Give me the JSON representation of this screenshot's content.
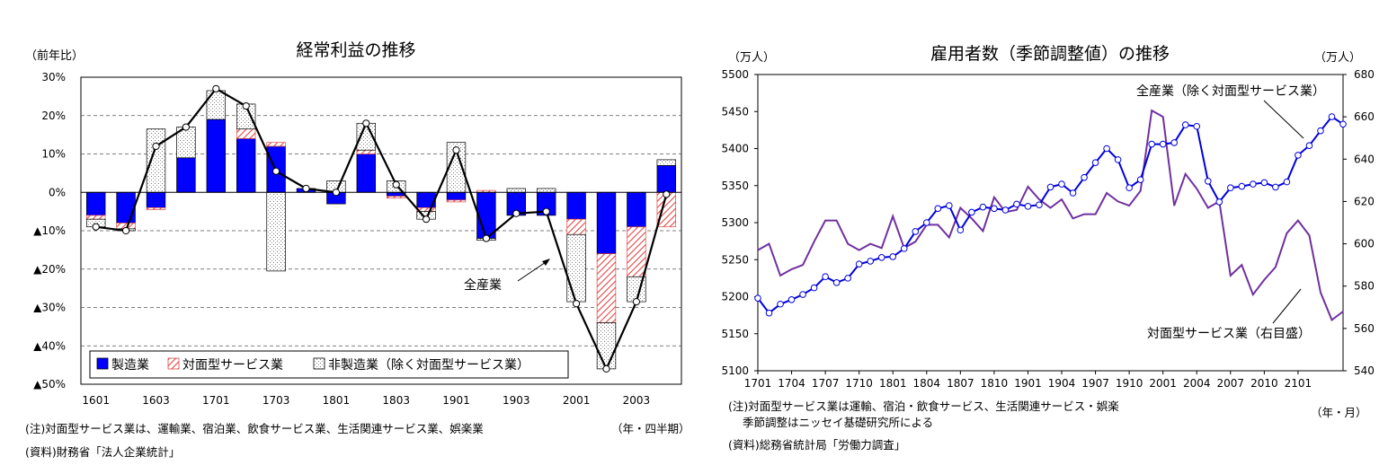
{
  "chart_data": [
    {
      "type": "bar",
      "title": "経常利益の推移",
      "ylabel_unit": "（前年比）",
      "xlabel_unit": "（年・四半期）",
      "ylim": [
        -50,
        30
      ],
      "y_ticks": [
        {
          "value": 30,
          "label": "30%"
        },
        {
          "value": 20,
          "label": "20%"
        },
        {
          "value": 10,
          "label": "10%"
        },
        {
          "value": 0,
          "label": "0%"
        },
        {
          "value": -10,
          "label": "▲10%"
        },
        {
          "value": -20,
          "label": "▲20%"
        },
        {
          "value": -30,
          "label": "▲30%"
        },
        {
          "value": -40,
          "label": "▲40%"
        },
        {
          "value": -50,
          "label": "▲50%"
        }
      ],
      "x_tick_labels": [
        "1601",
        "1603",
        "1701",
        "1703",
        "1801",
        "1803",
        "1901",
        "1903",
        "2001",
        "2003"
      ],
      "categories": [
        "1601",
        "1602",
        "1603",
        "1604",
        "1701",
        "1702",
        "1703",
        "1704",
        "1801",
        "1802",
        "1803",
        "1804",
        "1901",
        "1902",
        "1903",
        "1904",
        "2001",
        "2002",
        "2003",
        "2004"
      ],
      "series": [
        {
          "name": "製造業",
          "color": "#0000ff",
          "values": [
            -6,
            -8,
            -4,
            9,
            19,
            14,
            12,
            1,
            -3,
            10,
            -1,
            -4,
            -2,
            -12,
            -6,
            -6,
            -7,
            -16,
            -9,
            7
          ]
        },
        {
          "name": "対面型サービス業",
          "color": "#e06060",
          "values": [
            -1,
            -1.5,
            -0.5,
            0,
            0,
            2.5,
            1,
            0,
            0,
            1,
            -0.5,
            -1,
            -0.5,
            0.5,
            0,
            0,
            -4,
            -18,
            -13,
            -9
          ]
        },
        {
          "name": "非製造業（除く対面型サービス業）",
          "color": "#cccccc",
          "values": [
            -2,
            -0.5,
            16.5,
            8,
            7.5,
            6.5,
            -20.5,
            0,
            3,
            7,
            3,
            -2,
            13,
            -0.5,
            1,
            1,
            -17.5,
            -12,
            -6.5,
            1.5
          ]
        }
      ],
      "line": {
        "name": "全産業",
        "values": [
          -9,
          -10,
          12,
          17,
          27,
          22.5,
          5.5,
          1,
          0,
          18,
          2,
          -7,
          11,
          -12,
          -5.5,
          -5,
          -29,
          -46,
          -28.5,
          -0.5
        ]
      },
      "callout": "全産業",
      "note": "(注)対面型サービス業は、運輸業、宿泊業、飲食サービス業、生活関連サービス業、娯楽業",
      "source": "(資料)財務省「法人企業統計」"
    },
    {
      "type": "line",
      "title": "雇用者数（季節調整値）の推移",
      "ylabel_left_unit": "（万人）",
      "ylabel_right_unit": "（万人）",
      "xlabel_unit": "（年・月）",
      "ylim_left": [
        5100,
        5500
      ],
      "ylim_right": [
        540,
        680
      ],
      "y_left_ticks": [
        "5500",
        "5450",
        "5400",
        "5350",
        "5300",
        "5250",
        "5200",
        "5150",
        "5100"
      ],
      "y_right_ticks": [
        "680",
        "660",
        "640",
        "620",
        "600",
        "580",
        "560",
        "540"
      ],
      "x_tick_labels": [
        "1701",
        "1704",
        "1707",
        "1710",
        "1801",
        "1804",
        "1807",
        "1810",
        "1901",
        "1904",
        "1907",
        "1910",
        "2001",
        "2004",
        "2007",
        "2010",
        "2101"
      ],
      "series": [
        {
          "name": "全産業（除く対面型サービス業）",
          "axis": "left",
          "color": "#0000dd",
          "values": [
            5198,
            5178,
            5190,
            5196,
            5203,
            5212,
            5227,
            5219,
            5225,
            5244,
            5248,
            5253,
            5254,
            5265,
            5288,
            5300,
            5319,
            5323,
            5290,
            5314,
            5321,
            5319,
            5317,
            5325,
            5322,
            5324,
            5348,
            5352,
            5340,
            5361,
            5381,
            5400,
            5385,
            5347,
            5358,
            5406,
            5406,
            5408,
            5432,
            5430,
            5356,
            5328,
            5347,
            5349,
            5352,
            5354,
            5348,
            5355,
            5391,
            5404,
            5424,
            5443,
            5433
          ]
        },
        {
          "name": "対面型サービス業（右目盛）",
          "axis": "right",
          "color": "#7030a0",
          "values": [
            597,
            600,
            585,
            588,
            590,
            601,
            611,
            611,
            600,
            597,
            600,
            598,
            613,
            598,
            601,
            609,
            609,
            603,
            617,
            612,
            606,
            622,
            615,
            616,
            627,
            621,
            617,
            621,
            612,
            614,
            614,
            624,
            620,
            618,
            625,
            663,
            660,
            618,
            633,
            626,
            617,
            620,
            585,
            590,
            576,
            583,
            589,
            605,
            611,
            604,
            577,
            564,
            568
          ]
        }
      ],
      "callout_total": "全産業（除く対面型サービス業）",
      "callout_face": "対面型サービス業（右目盛）",
      "note_1": "(注)対面型サービス業は運輸、宿泊・飲食サービス、生活関連サービス・娯楽",
      "note_2": "季節調整はニッセイ基礎研究所による",
      "source": "(資料)総務省統計局「労働力調査」"
    }
  ]
}
